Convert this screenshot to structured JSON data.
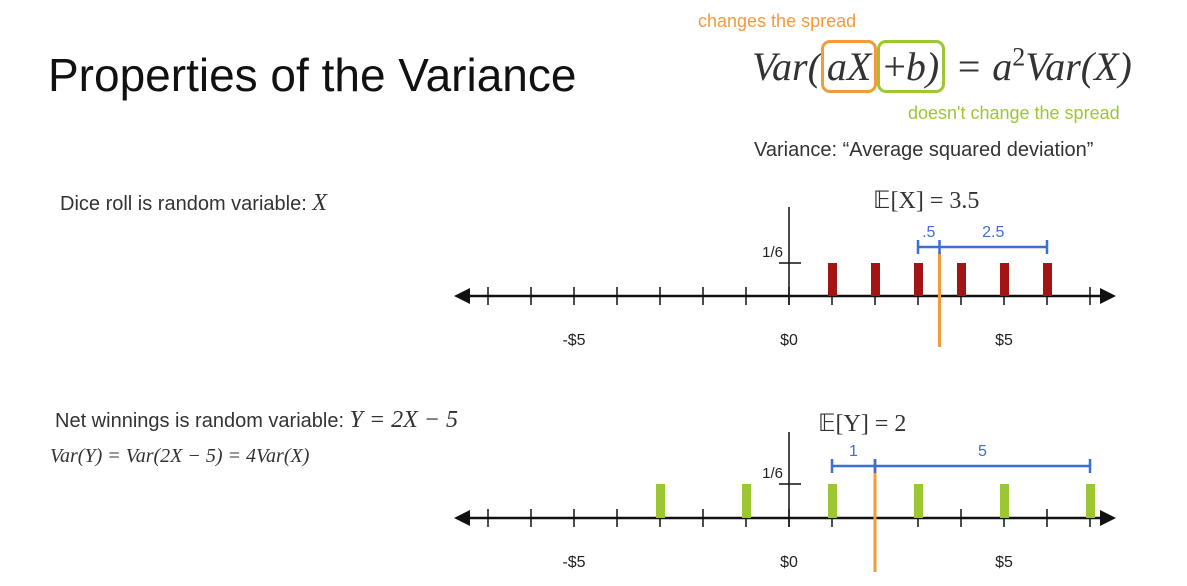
{
  "title": "Properties of the Variance",
  "formula": {
    "lhs_prefix": "Var(",
    "boxed_ax": "aX",
    "plus": "+",
    "boxed_b": "b)",
    "rhs_prefix": " = a",
    "rhs_exp": "2",
    "rhs_suffix": "Var(X)"
  },
  "annotations": {
    "changes": "changes the spread",
    "no_change": "doesn't change the spread"
  },
  "definition": "Variance: “Average squared deviation”",
  "colors": {
    "orange": "#f39a3a",
    "green": "#9cc733",
    "dark_red": "#a31515",
    "blue": "#3b6fd6",
    "axis": "#111111"
  },
  "dice": {
    "description": "Dice roll is random variable: ",
    "variable": "X",
    "expectation": "𝔼[X] = 3.5",
    "prob_label": "1/6",
    "values": [
      1,
      2,
      3,
      4,
      5,
      6
    ],
    "mean": 3.5,
    "deviation_labels": [
      ".5",
      "2.5"
    ],
    "tick_labels": [
      {
        "value": -5,
        "label": "-$5"
      },
      {
        "value": 0,
        "label": "$0"
      },
      {
        "value": 5,
        "label": "$5"
      }
    ]
  },
  "winnings": {
    "description": "Net winnings is random variable: ",
    "relation": "Y = 2X − 5",
    "equation": "Var(Y) = Var(2X − 5) = 4Var(X)",
    "expectation": "𝔼[Y] = 2",
    "prob_label": "1/6",
    "values": [
      -3,
      -1,
      1,
      3,
      5,
      7
    ],
    "mean": 2,
    "deviation_labels": [
      "1",
      "5"
    ],
    "tick_labels": [
      {
        "value": -5,
        "label": "-$5"
      },
      {
        "value": 0,
        "label": "$0"
      },
      {
        "value": 5,
        "label": "$5"
      }
    ]
  }
}
